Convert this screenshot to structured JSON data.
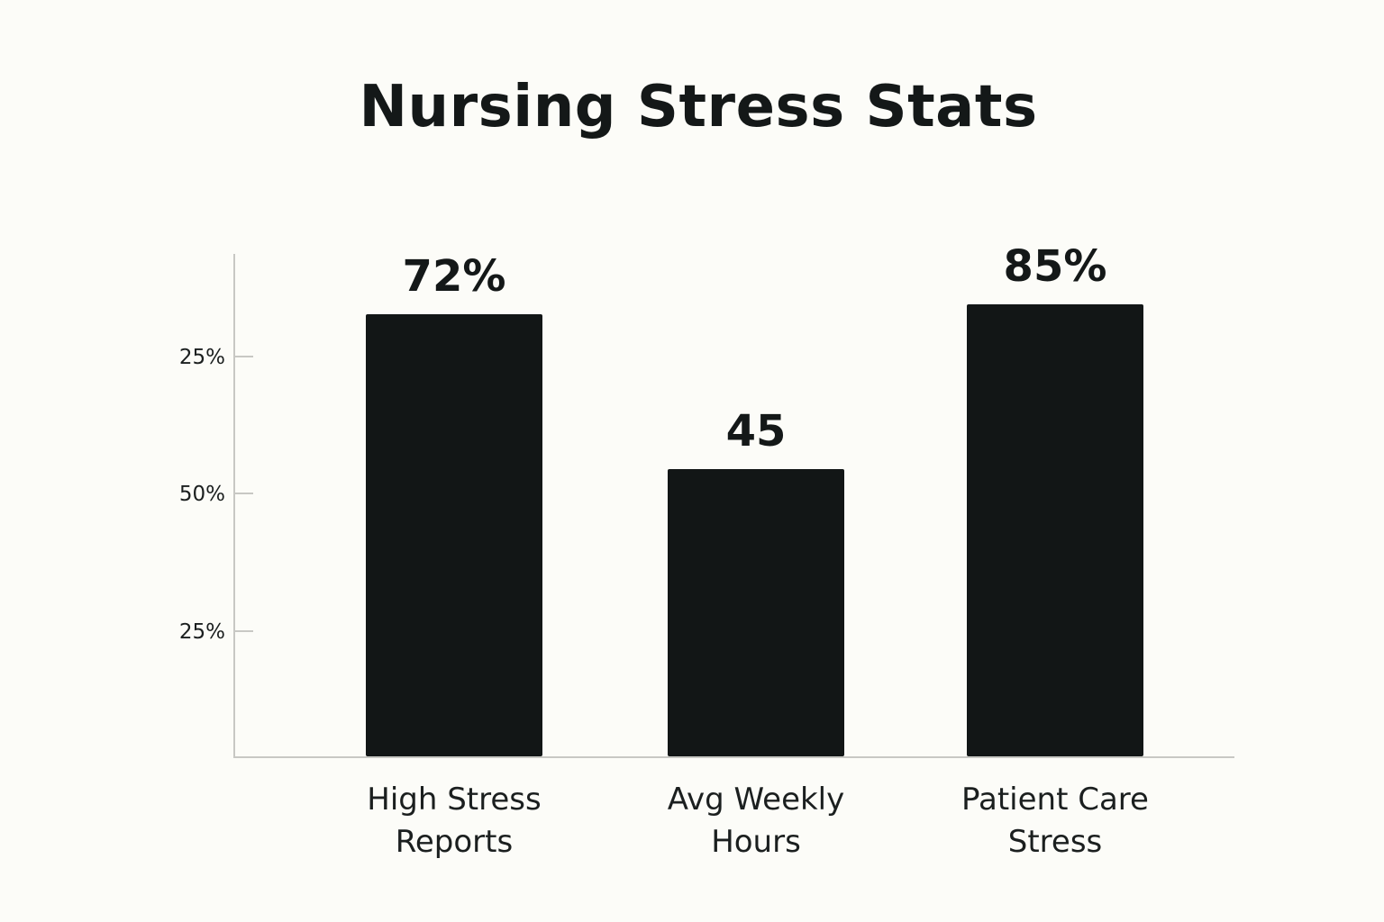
{
  "chart_data": {
    "type": "bar",
    "title": "Nursing Stress Stats",
    "categories": [
      [
        "High Stress",
        "Reports"
      ],
      [
        "Avg Weekly",
        "Hours"
      ],
      [
        "Patient Care",
        "Stress"
      ]
    ],
    "values": [
      72,
      45,
      85
    ],
    "data_labels": [
      "72%",
      "45",
      "85%"
    ],
    "y_ticks": [
      "25%",
      "50%",
      "25%"
    ],
    "bar_color": "#121616",
    "axis_color": "#c8c8c4",
    "grid": false,
    "legend": "none"
  }
}
